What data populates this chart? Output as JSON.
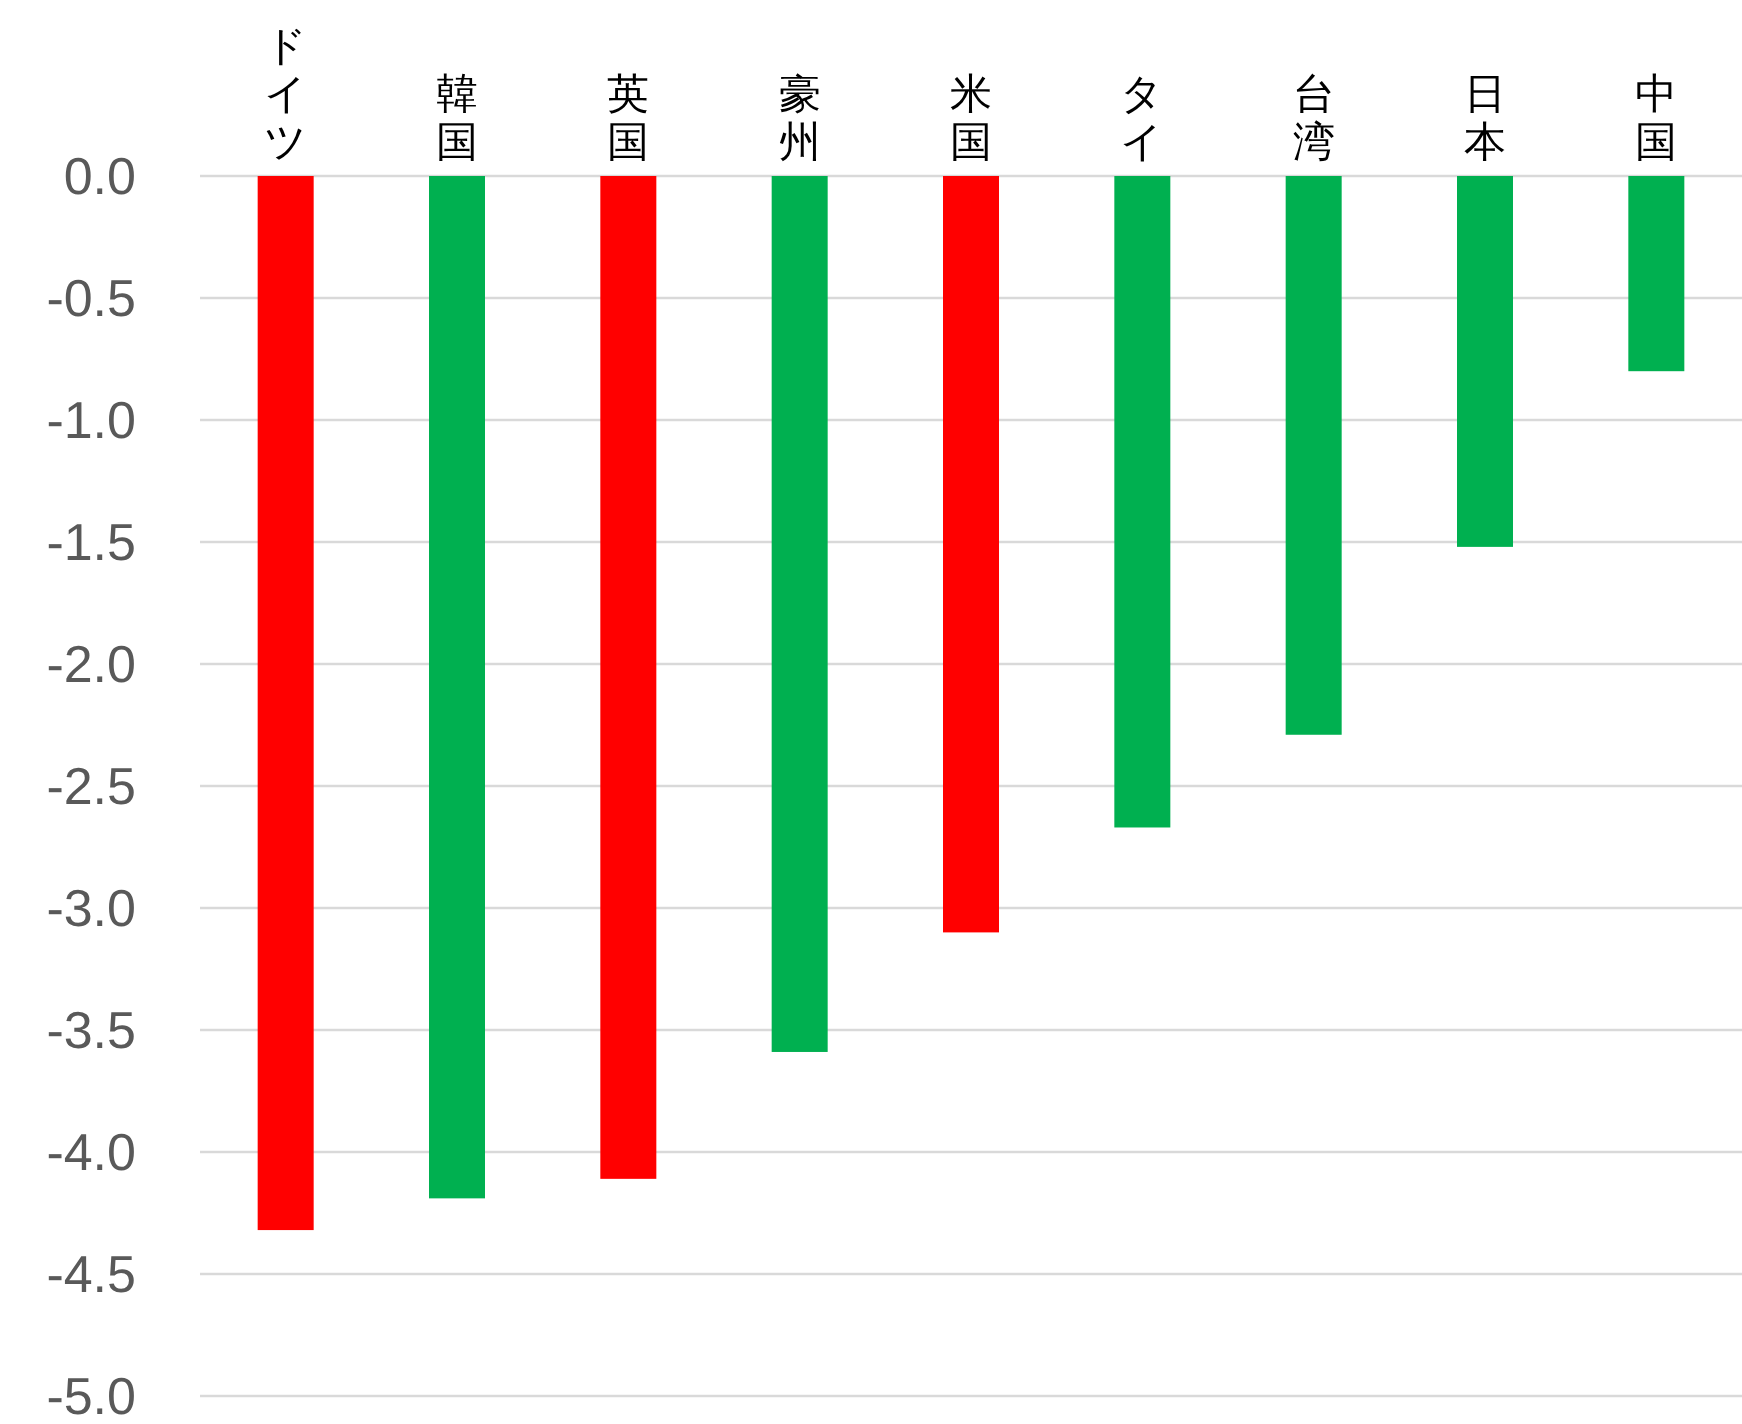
{
  "chart_data": {
    "type": "bar",
    "categories": [
      "ドイツ",
      "韓国",
      "英国",
      "豪州",
      "米国",
      "タイ",
      "台湾",
      "日本",
      "中国"
    ],
    "values": [
      -4.32,
      -4.19,
      -4.11,
      -3.59,
      -3.1,
      -2.67,
      -2.29,
      -1.52,
      -0.8
    ],
    "colors": [
      "#ff0000",
      "#00b050",
      "#ff0000",
      "#00b050",
      "#ff0000",
      "#00b050",
      "#00b050",
      "#00b050",
      "#00b050"
    ],
    "ylim": [
      -5,
      0
    ],
    "yticks": [
      {
        "value": 0,
        "label": "0.0"
      },
      {
        "value": -0.5,
        "label": "-0.5"
      },
      {
        "value": -1,
        "label": "-1.0"
      },
      {
        "value": -1.5,
        "label": "-1.5"
      },
      {
        "value": -2,
        "label": "-2.0"
      },
      {
        "value": -2.5,
        "label": "-2.5"
      },
      {
        "value": -3,
        "label": "-3.0"
      },
      {
        "value": -3.5,
        "label": "-3.5"
      },
      {
        "value": -4,
        "label": "-4.0"
      },
      {
        "value": -4.5,
        "label": "-4.5"
      },
      {
        "value": -5,
        "label": "-5.0"
      }
    ],
    "grid": "y"
  }
}
